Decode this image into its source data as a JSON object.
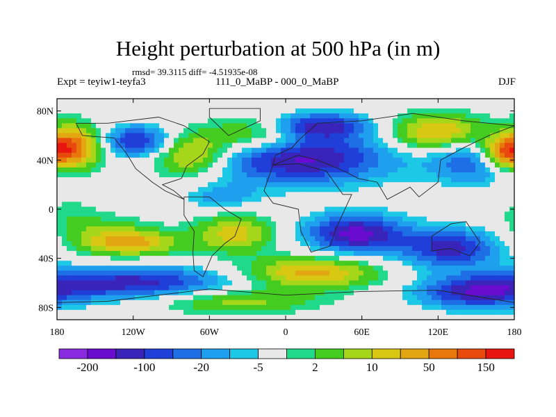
{
  "title": "Height perturbation at 500 hPa (in m)",
  "stats": "rmsd= 39.3115 diff= -4.51935e-08",
  "left_label": "Expt = teyiw1-teyfa3",
  "center_label": "111_0_MaBP - 000_0_MaBP",
  "right_label": "DJF",
  "lat_ticks": [
    {
      "label": "80N",
      "lat": 80
    },
    {
      "label": "40N",
      "lat": 40
    },
    {
      "label": "0",
      "lat": 0
    },
    {
      "label": "40S",
      "lat": -40
    },
    {
      "label": "80S",
      "lat": -80
    }
  ],
  "lon_ticks": [
    {
      "label": "180",
      "lon": -180
    },
    {
      "label": "120W",
      "lon": -120
    },
    {
      "label": "60W",
      "lon": -60
    },
    {
      "label": "0",
      "lon": 0
    },
    {
      "label": "60E",
      "lon": 60
    },
    {
      "label": "120E",
      "lon": 120
    },
    {
      "label": "180",
      "lon": 180
    }
  ],
  "colorbar": {
    "colors": [
      "#8a2be2",
      "#6a0cd0",
      "#3a23b8",
      "#1f3fd8",
      "#1e6fe6",
      "#1ea0ee",
      "#1cc8e6",
      "#e8e8e8",
      "#20d98a",
      "#45cc20",
      "#a6d61a",
      "#d8c813",
      "#e2a613",
      "#e8780c",
      "#e84a0e",
      "#e8140f"
    ],
    "labels": [
      {
        "text": "-200",
        "index": 1
      },
      {
        "text": "-100",
        "index": 3
      },
      {
        "text": "-20",
        "index": 5
      },
      {
        "text": "-5",
        "index": 7
      },
      {
        "text": "2",
        "index": 9
      },
      {
        "text": "10",
        "index": 11
      },
      {
        "text": "50",
        "index": 13
      },
      {
        "text": "150",
        "index": 15
      }
    ]
  },
  "field_blobs": [
    {
      "lon": -168,
      "lat": 50,
      "rlon": 18,
      "rlat": 14,
      "level": 7
    },
    {
      "lon": -115,
      "lat": 55,
      "rlon": 22,
      "rlat": 10,
      "level": -5
    },
    {
      "lon": -75,
      "lat": 45,
      "rlon": 25,
      "rlat": 14,
      "level": 5
    },
    {
      "lon": -20,
      "lat": 60,
      "rlon": 30,
      "rlat": 12,
      "level": 4
    },
    {
      "lon": 10,
      "lat": 42,
      "rlon": 55,
      "rlat": 16,
      "level": -6
    },
    {
      "lon": 25,
      "lat": 68,
      "rlon": 30,
      "rlat": 8,
      "level": -5
    },
    {
      "lon": 120,
      "lat": 62,
      "rlon": 30,
      "rlat": 12,
      "level": 5
    },
    {
      "lon": 150,
      "lat": 40,
      "rlon": 28,
      "rlat": 14,
      "level": -4
    },
    {
      "lon": 170,
      "lat": 45,
      "rlon": 14,
      "rlat": 10,
      "level": 6
    },
    {
      "lon": -50,
      "lat": 10,
      "rlon": 22,
      "rlat": 8,
      "level": -2
    },
    {
      "lon": -140,
      "lat": -20,
      "rlon": 30,
      "rlat": 12,
      "level": 2
    },
    {
      "lon": -120,
      "lat": -28,
      "rlon": 30,
      "rlat": 8,
      "level": 4
    },
    {
      "lon": -40,
      "lat": -20,
      "rlon": 25,
      "rlat": 12,
      "level": 4
    },
    {
      "lon": 55,
      "lat": -20,
      "rlon": 30,
      "rlat": 12,
      "level": -6
    },
    {
      "lon": 130,
      "lat": -32,
      "rlon": 30,
      "rlat": 12,
      "level": -5
    },
    {
      "lon": -120,
      "lat": -60,
      "rlon": 60,
      "rlat": 10,
      "level": -5
    },
    {
      "lon": 20,
      "lat": -52,
      "rlon": 40,
      "rlat": 10,
      "level": 5
    },
    {
      "lon": 150,
      "lat": -68,
      "rlon": 35,
      "rlat": 10,
      "level": -5
    },
    {
      "lon": -40,
      "lat": -75,
      "rlon": 50,
      "rlat": 8,
      "level": 3
    },
    {
      "lon": -170,
      "lat": -5,
      "rlon": 20,
      "rlat": 14,
      "level": 1
    }
  ]
}
